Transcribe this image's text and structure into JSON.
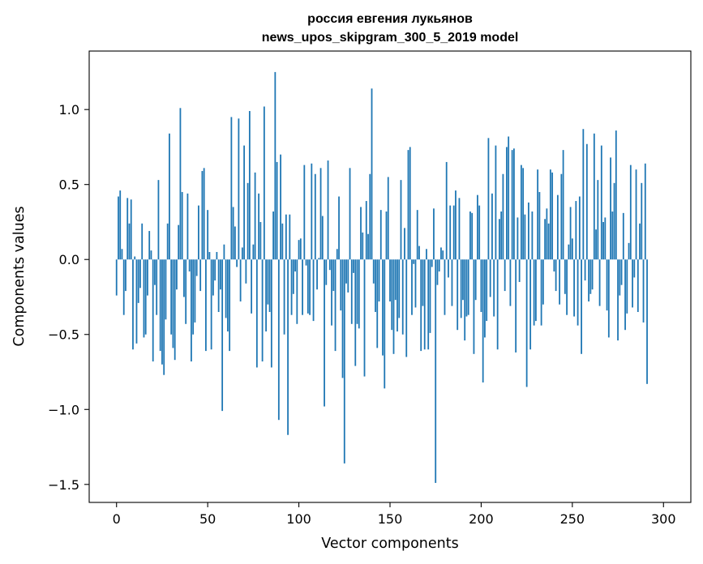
{
  "chart_data": {
    "type": "bar",
    "title": "россия евгения лукьянов",
    "subtitle": "news_upos_skipgram_300_5_2019 model",
    "xlabel": "Vector components",
    "ylabel": "Components values",
    "xlim": [
      -15,
      315
    ],
    "ylim": [
      -1.62,
      1.39
    ],
    "xticks": [
      0,
      50,
      100,
      150,
      200,
      250,
      300
    ],
    "xtick_labels": [
      "0",
      "50",
      "100",
      "150",
      "200",
      "250",
      "300"
    ],
    "yticks": [
      -1.5,
      -1.0,
      -0.5,
      0.0,
      0.5,
      1.0
    ],
    "ytick_labels": [
      "−1.5",
      "−1.0",
      "−0.5",
      "0.0",
      "0.5",
      "1.0"
    ],
    "color": "#1f77b4",
    "grid": false,
    "values": [
      -0.24,
      0.42,
      0.46,
      0.07,
      -0.37,
      -0.21,
      0.41,
      0.24,
      0.4,
      -0.6,
      0.02,
      -0.56,
      -0.29,
      -0.19,
      0.24,
      -0.52,
      -0.5,
      -0.24,
      0.19,
      0.06,
      -0.68,
      -0.17,
      -0.37,
      0.53,
      -0.61,
      -0.7,
      -0.77,
      -0.4,
      0.24,
      0.84,
      -0.5,
      -0.59,
      -0.67,
      -0.2,
      0.23,
      1.01,
      0.45,
      -0.25,
      -0.43,
      0.44,
      -0.08,
      -0.68,
      -0.5,
      -0.42,
      -0.11,
      0.36,
      -0.21,
      0.59,
      0.61,
      -0.61,
      0.33,
      0.05,
      -0.6,
      -0.24,
      -0.14,
      0.05,
      -0.35,
      -0.2,
      -1.01,
      0.1,
      -0.39,
      -0.48,
      -0.61,
      0.95,
      0.35,
      0.22,
      -0.05,
      0.94,
      -0.28,
      0.08,
      0.76,
      -0.16,
      0.51,
      0.99,
      -0.36,
      0.1,
      0.58,
      -0.72,
      0.44,
      0.25,
      -0.68,
      1.02,
      -0.48,
      -0.3,
      -0.35,
      -0.72,
      0.32,
      1.25,
      0.65,
      -1.07,
      0.7,
      0.24,
      -0.5,
      0.3,
      -1.17,
      0.3,
      -0.37,
      -0.23,
      -0.08,
      -0.43,
      0.13,
      0.14,
      -0.37,
      0.63,
      -0.04,
      -0.36,
      -0.37,
      0.64,
      -0.41,
      0.57,
      -0.2,
      0.01,
      0.61,
      0.29,
      -0.98,
      -0.17,
      0.66,
      -0.07,
      -0.44,
      -0.21,
      -0.61,
      0.07,
      0.42,
      -0.34,
      -0.79,
      -1.36,
      -0.16,
      -0.22,
      0.61,
      -0.43,
      -0.09,
      -0.71,
      -0.43,
      -0.46,
      0.35,
      0.18,
      -0.78,
      0.39,
      0.17,
      0.57,
      1.14,
      -0.16,
      -0.35,
      -0.59,
      -0.28,
      0.33,
      -0.64,
      -0.86,
      0.32,
      0.55,
      -0.28,
      -0.47,
      -0.63,
      -0.27,
      -0.48,
      -0.39,
      0.53,
      -0.5,
      0.21,
      -0.65,
      0.73,
      0.75,
      -0.37,
      -0.03,
      -0.32,
      0.33,
      0.09,
      -0.61,
      -0.31,
      -0.6,
      0.07,
      -0.6,
      -0.49,
      -0.05,
      0.34,
      -1.49,
      -0.17,
      -0.08,
      0.08,
      0.06,
      -0.37,
      0.65,
      -0.12,
      0.36,
      -0.31,
      0.36,
      0.46,
      -0.47,
      0.41,
      -0.39,
      -0.27,
      -0.54,
      -0.38,
      -0.37,
      0.32,
      0.31,
      -0.63,
      -0.27,
      0.43,
      0.36,
      -0.35,
      -0.82,
      -0.52,
      -0.41,
      0.81,
      -0.25,
      0.44,
      -0.38,
      0.76,
      -0.6,
      0.27,
      0.32,
      0.57,
      -0.21,
      0.75,
      0.82,
      -0.31,
      0.73,
      0.74,
      -0.62,
      0.28,
      -0.15,
      0.63,
      0.61,
      0.3,
      -0.85,
      0.38,
      -0.6,
      0.32,
      -0.44,
      -0.41,
      0.6,
      0.45,
      -0.44,
      -0.3,
      0.27,
      0.34,
      0.24,
      0.6,
      0.58,
      -0.08,
      -0.21,
      0.43,
      -0.3,
      0.57,
      0.73,
      -0.23,
      -0.37,
      0.1,
      0.35,
      0.14,
      -0.38,
      0.39,
      -0.44,
      0.42,
      -0.63,
      0.87,
      -0.14,
      0.77,
      -0.28,
      -0.23,
      -0.2,
      0.84,
      0.2,
      0.53,
      -0.31,
      0.76,
      0.25,
      0.28,
      -0.34,
      -0.52,
      0.68,
      0.32,
      0.51,
      0.86,
      -0.54,
      -0.24,
      -0.17,
      0.31,
      -0.47,
      -0.36,
      0.11,
      0.63,
      -0.32,
      -0.12,
      0.6,
      -0.35,
      0.24,
      0.51,
      -0.42,
      0.64,
      -0.83
    ]
  }
}
